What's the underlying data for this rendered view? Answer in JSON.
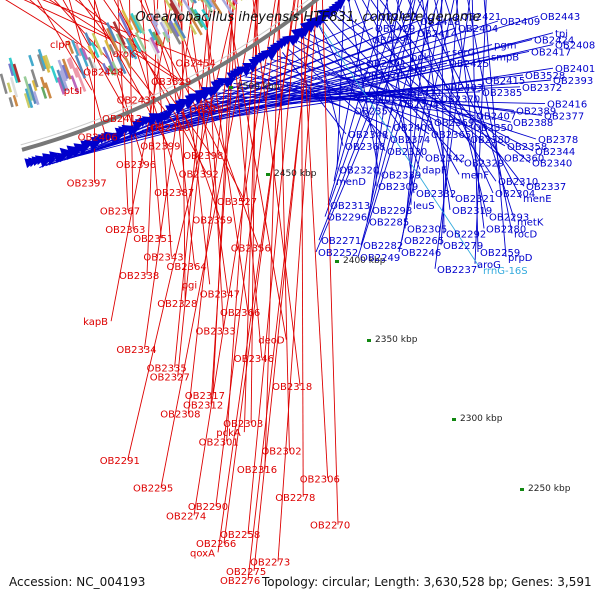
{
  "map": {
    "title": "Oceanobacillus iheyensis HTE831, complete genome",
    "accession": "Accession: NC_004193",
    "summary": "Topology: circular; Length: 3,630,528 bp; Genes: 3,591",
    "ticks": [
      "2500 kbp",
      "2450 kbp",
      "2400 kbp",
      "2350 kbp",
      "2300 kbp",
      "2250 kbp"
    ],
    "colors": {
      "forward": "#0000cc",
      "reverse": "#dd0000",
      "rrna": "#33aadd",
      "backbone": "#777777",
      "tick": "#118811"
    },
    "blue_labels": [
      "OB2433",
      "OB2418",
      "OB2421",
      "OB2409",
      "OB2443",
      "tpi",
      "OB2429",
      "OB2414",
      "OB2404",
      "pgm",
      "OB2424",
      "OB2408",
      "OB2395",
      "pgk",
      "serG",
      "smpB",
      "OB2417",
      "OB2401",
      "OB2391",
      "eno",
      "OB2425",
      "OB2415",
      "OB3528",
      "OB2393",
      "OB2379",
      "OB2411",
      "OB2403",
      "OB2385",
      "OB2372",
      "OB2416",
      "OB2402",
      "OB2394",
      "OB2370",
      "OB2407",
      "OB2389",
      "OB2377",
      "OB2357",
      "OB2400",
      "OB2369",
      "OB2350",
      "OB2388",
      "OB2378",
      "OB2348",
      "OB2374",
      "OB2365",
      "OB2380",
      "OB2358",
      "OB2344",
      "OB2368",
      "OB2330",
      "OB2342",
      "OB2329",
      "OB2360",
      "OB2340",
      "OB2320",
      "OB2339",
      "dapF",
      "menF",
      "OB2310",
      "OB2337",
      "menD",
      "OB2309",
      "OB2332",
      "OB2321",
      "OB2304",
      "menE",
      "OB2313",
      "OB2298",
      "leuS",
      "OB2319",
      "OB2293",
      "metK",
      "OB2296",
      "OB2285",
      "OB2305",
      "OB2292",
      "OB2280",
      "rocD",
      "OB2271",
      "OB2282",
      "OB2265",
      "OB2279",
      "OB2259",
      "prpD",
      "OB2252",
      "OB2249",
      "OB2246",
      "OB2237",
      "aroG"
    ],
    "rrna_labels": [
      "rrnG-16S"
    ],
    "red_labels": [
      "clpP",
      "aroK",
      "OB2454",
      "OB2448",
      "OB3529",
      "ptsI",
      "OB2431",
      "OB2413",
      "OB2412",
      "OB2410",
      "OB2406",
      "OB2399",
      "OB2398",
      "OB2396",
      "OB2392",
      "OB2397",
      "OB2387",
      "OB3527",
      "OB2367",
      "OB2359",
      "OB2363",
      "OB2351",
      "OB2356",
      "OB2343",
      "OB2364",
      "OB2338",
      "pgi",
      "OB2347",
      "OB2328",
      "OB2366",
      "kapB",
      "OB2333",
      "deoD",
      "OB2334",
      "OB2346",
      "OB2335",
      "OB2327",
      "OB2318",
      "OB2317",
      "OB2312",
      "OB2308",
      "OB2303",
      "pckA",
      "OB2301",
      "OB2302",
      "OB2291",
      "OB2316",
      "OB2306",
      "OB2295",
      "OB2278",
      "OB2290",
      "OB2274",
      "OB2270",
      "OB2258",
      "OB2266",
      "qoxA",
      "OB2273",
      "OB2275",
      "OB2276"
    ]
  }
}
